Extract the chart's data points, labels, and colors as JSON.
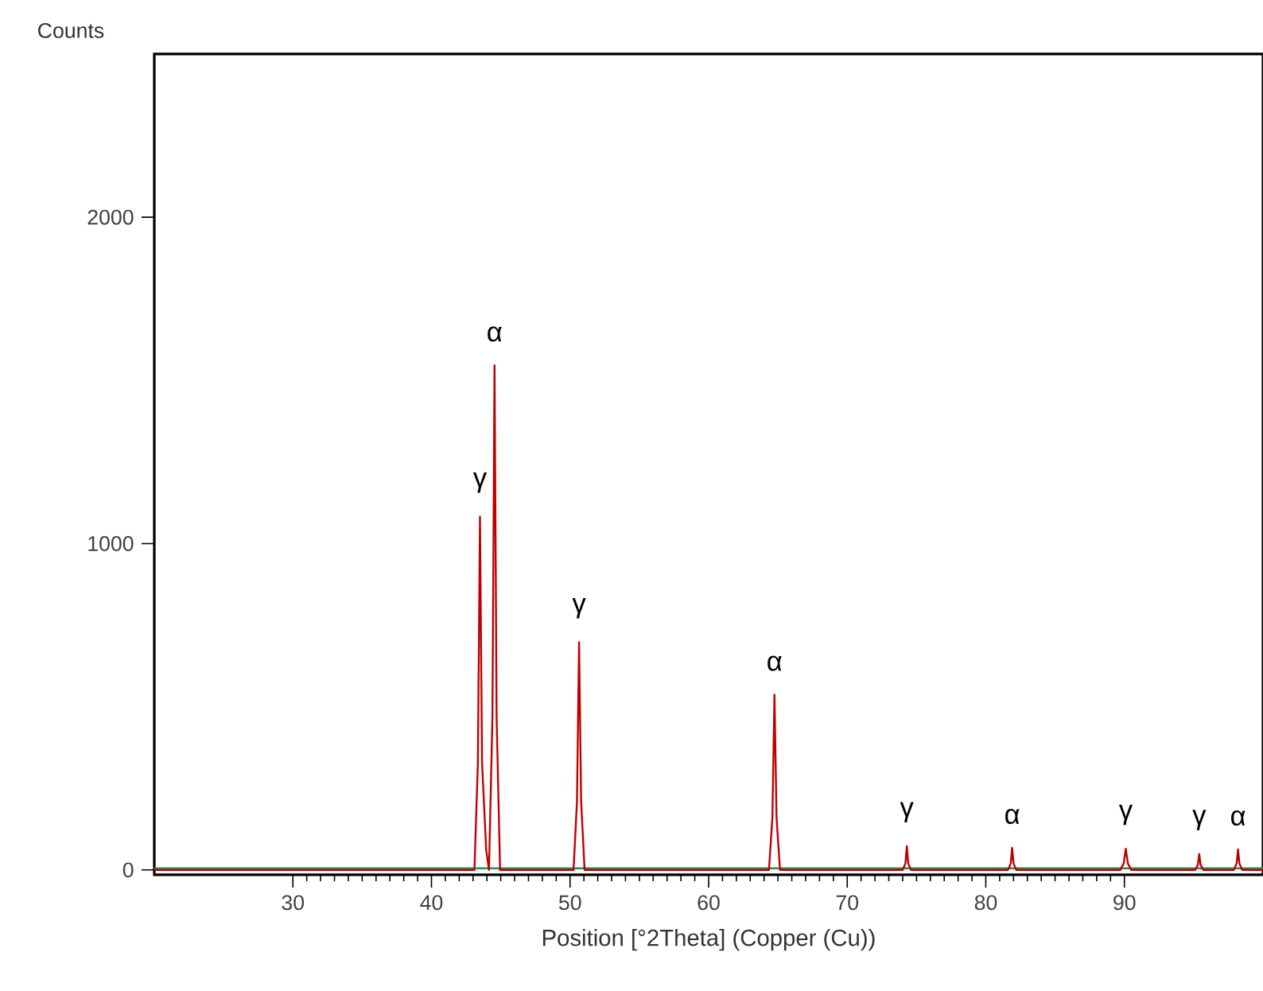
{
  "chart_data": {
    "type": "line",
    "ylabel": "Counts",
    "xlabel": "Position [°2Theta] (Copper (Cu))",
    "xlim": [
      20,
      100
    ],
    "ylim": [
      -15,
      2500
    ],
    "xticks": [
      30,
      40,
      50,
      60,
      70,
      80,
      90
    ],
    "yticks": [
      0,
      1000,
      2000
    ],
    "grid": false,
    "marker": "none",
    "line_style": "solid",
    "series": [
      {
        "color": "#2e8b57",
        "x": [
          20,
          100
        ],
        "values": [
          5,
          5
        ]
      },
      {
        "color": "#c00000",
        "x": [
          20,
          43.1,
          43.35,
          43.5,
          43.65,
          43.95,
          44.15,
          44.4,
          44.55,
          44.7,
          44.95,
          50.25,
          50.5,
          50.65,
          50.8,
          51.05,
          64.35,
          64.6,
          64.75,
          64.9,
          65.15,
          74.0,
          74.2,
          74.3,
          74.4,
          74.6,
          81.6,
          81.8,
          81.9,
          82.0,
          82.2,
          89.7,
          89.95,
          90.1,
          90.25,
          90.5,
          95.1,
          95.3,
          95.4,
          95.5,
          95.7,
          97.9,
          98.1,
          98.2,
          98.3,
          98.5,
          100
        ],
        "values": [
          0,
          0,
          330,
          1083,
          330,
          60,
          0,
          470,
          1546,
          470,
          0,
          0,
          210,
          698,
          210,
          0,
          0,
          160,
          537,
          160,
          0,
          0,
          20,
          73,
          20,
          0,
          0,
          20,
          68,
          20,
          0,
          0,
          20,
          65,
          20,
          0,
          0,
          15,
          49,
          15,
          0,
          0,
          20,
          63,
          20,
          0,
          0
        ]
      }
    ],
    "annotations": [
      {
        "text": "γ",
        "x": 43.5,
        "y": 1083
      },
      {
        "text": "α",
        "x": 44.55,
        "y": 1546
      },
      {
        "text": "γ",
        "x": 50.65,
        "y": 698
      },
      {
        "text": "α",
        "x": 64.75,
        "y": 537
      },
      {
        "text": "γ",
        "x": 74.3,
        "y": 73
      },
      {
        "text": "α",
        "x": 81.9,
        "y": 68
      },
      {
        "text": "γ",
        "x": 90.1,
        "y": 65
      },
      {
        "text": "γ",
        "x": 95.4,
        "y": 49
      },
      {
        "text": "α",
        "x": 98.2,
        "y": 63
      }
    ]
  }
}
